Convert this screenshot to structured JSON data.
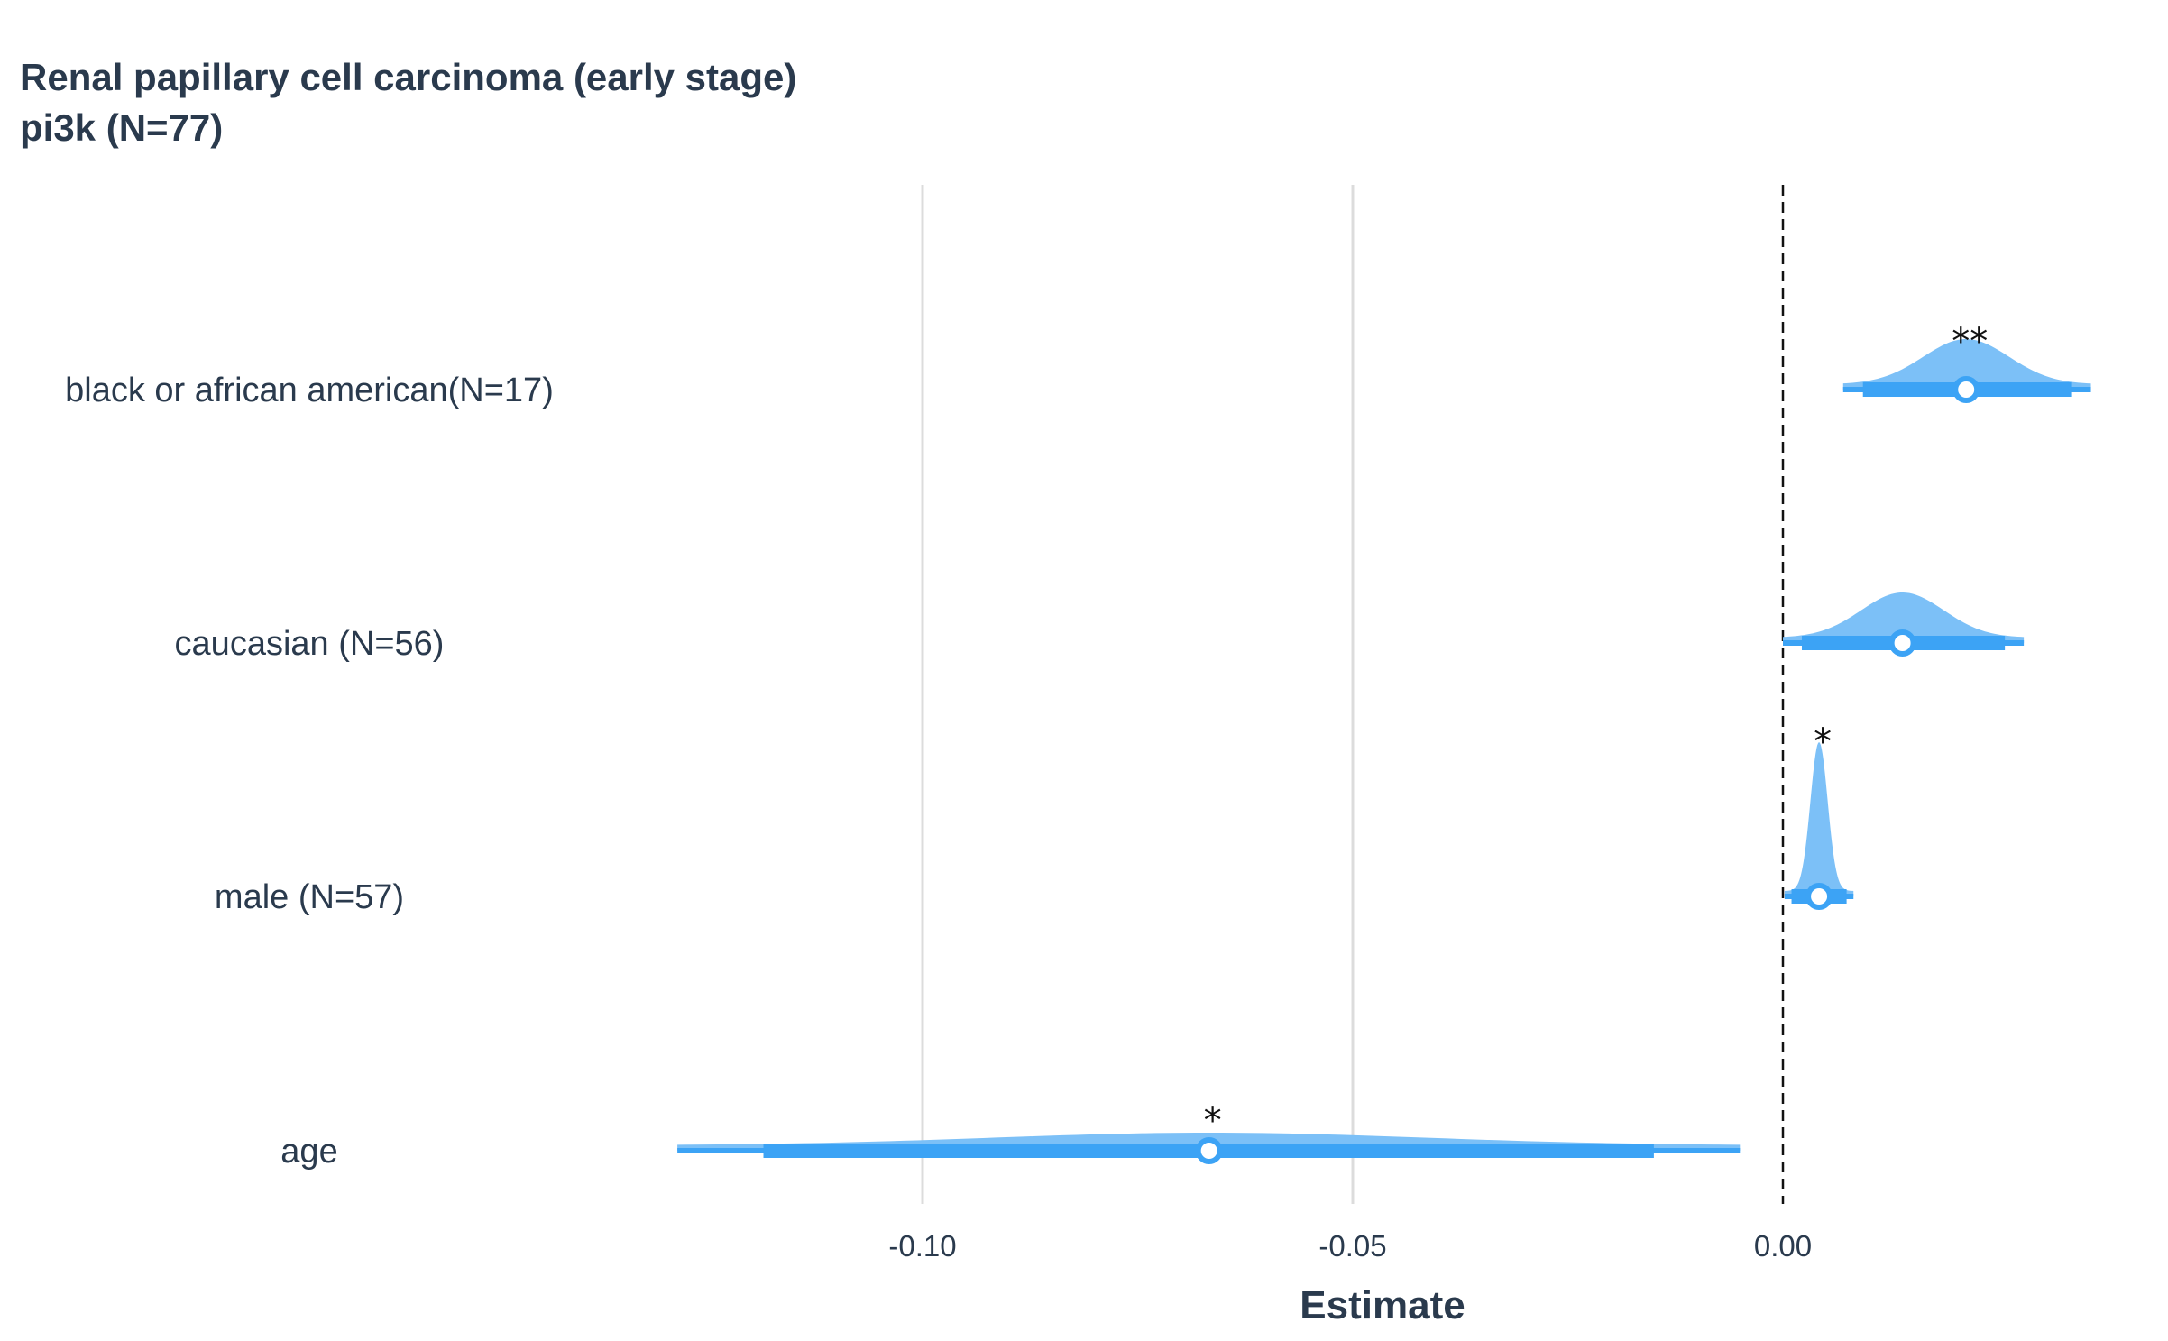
{
  "chart_data": {
    "type": "forest",
    "title_lines": [
      "Renal papillary cell carcinoma (early stage)",
      "pi3k (N=77)"
    ],
    "xlabel": "Estimate",
    "xlim": [
      -0.1335,
      0.0365
    ],
    "x_ticks": [
      {
        "value": -0.1,
        "label": "-0.10"
      },
      {
        "value": -0.05,
        "label": "-0.05"
      },
      {
        "value": 0.0,
        "label": "0.00"
      }
    ],
    "reference_line": 0.0,
    "grid": true,
    "colors": {
      "violin_fill": "#7cc0f7",
      "interval": "#3ca3f5",
      "point_fill": "#ffffff",
      "text": "#2a3a4d",
      "grid": "#dcdcdc",
      "reference": "#111111"
    },
    "rows": [
      {
        "label": "black or african american(N=17)",
        "estimate": 0.0213,
        "ci95": [
          0.007,
          0.0358
        ],
        "ci66": [
          0.0093,
          0.0335
        ],
        "density_sd": 0.005,
        "significance": "**"
      },
      {
        "label": "caucasian (N=56)",
        "estimate": 0.0139,
        "ci95": [
          0.0,
          0.028
        ],
        "ci66": [
          0.0022,
          0.0258
        ],
        "density_sd": 0.0048,
        "significance": ""
      },
      {
        "label": "male (N=57)",
        "estimate": 0.0042,
        "ci95": [
          0.0002,
          0.0082
        ],
        "ci66": [
          0.001,
          0.0074
        ],
        "density_sd": 0.001,
        "significance": "*"
      },
      {
        "label": "age",
        "estimate": -0.0667,
        "ci95": [
          -0.1285,
          -0.005
        ],
        "ci66": [
          -0.1185,
          -0.015
        ],
        "density_sd": 0.025,
        "significance": "*"
      }
    ]
  }
}
